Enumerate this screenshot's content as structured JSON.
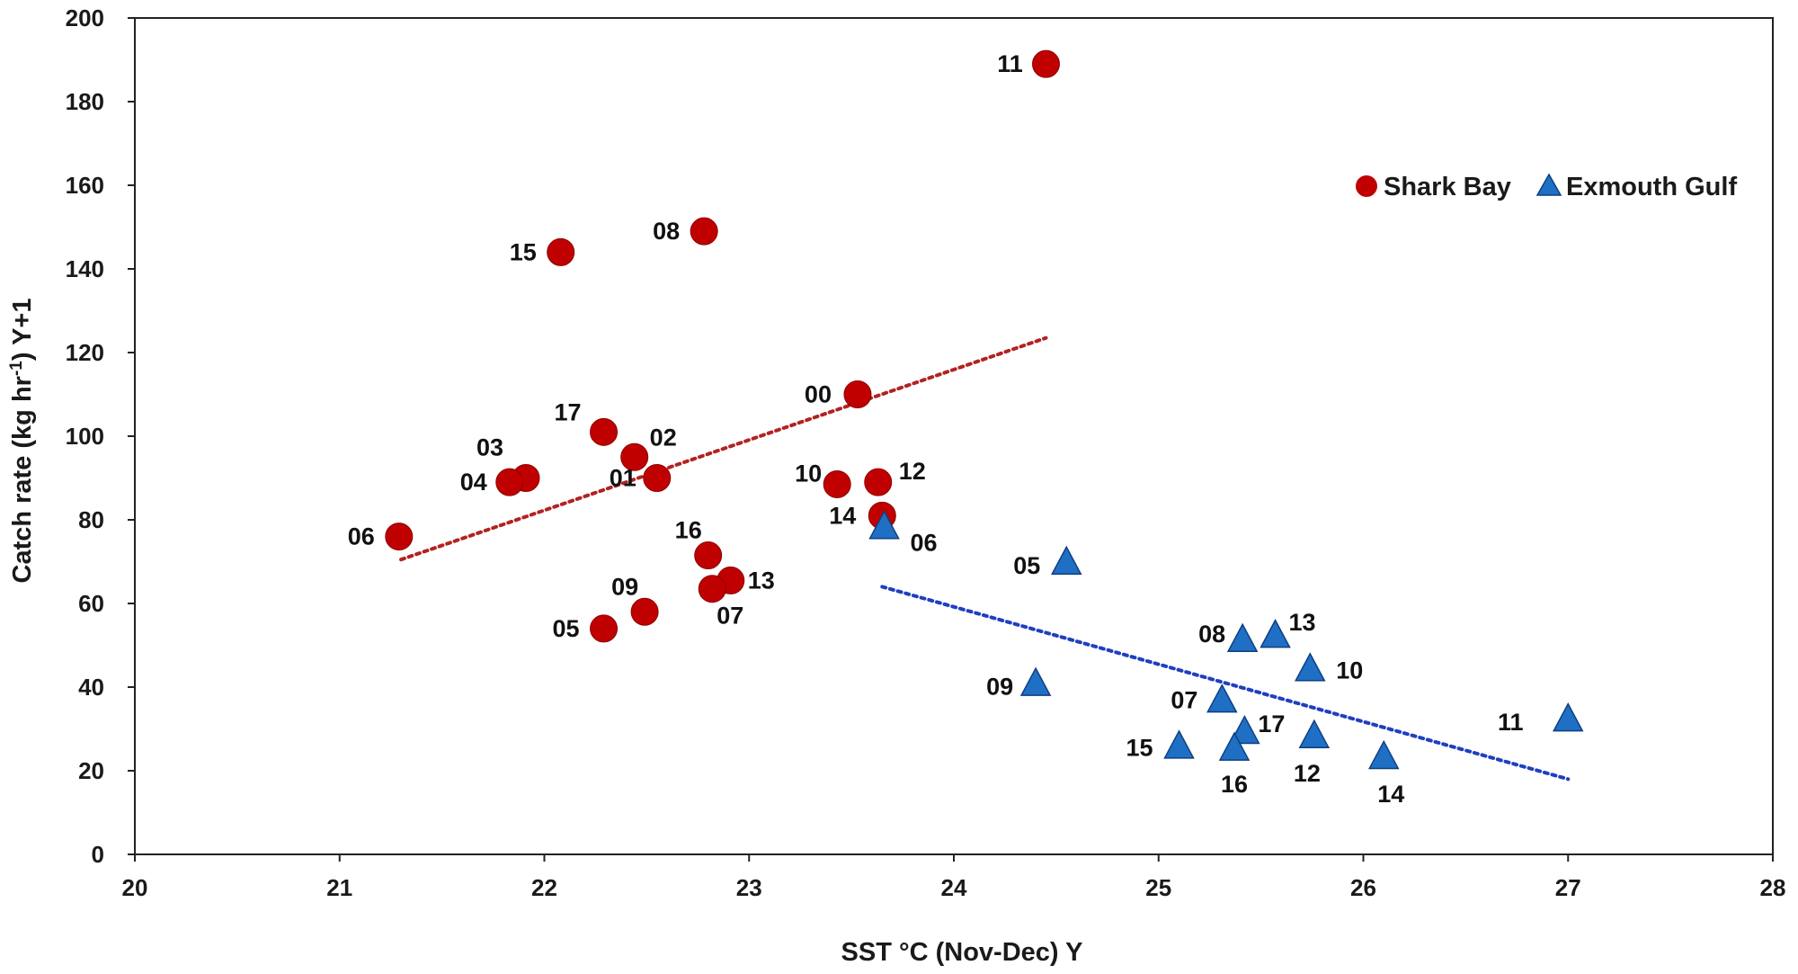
{
  "chart_data": {
    "type": "scatter",
    "xlabel": "SST °C (Nov-Dec) Y",
    "ylabel_parts": [
      "Catch rate (kg hr",
      "-1",
      ") Y+1"
    ],
    "xlim": [
      20,
      28
    ],
    "ylim": [
      0,
      200
    ],
    "x_ticks": [
      20,
      21,
      22,
      23,
      24,
      25,
      26,
      27,
      28
    ],
    "y_ticks": [
      0,
      20,
      40,
      60,
      80,
      100,
      120,
      140,
      160,
      180,
      200
    ],
    "legend_position": "top-right",
    "colors": {
      "shark_bay": "#C00000",
      "shark_bay_trend": "#B22222",
      "exmouth_gulf": "#1F6FC5",
      "exmouth_gulf_edge": "#0F3F80",
      "exmouth_gulf_trend": "#1F3FBF",
      "axis": "#222222"
    },
    "series": [
      {
        "name": "Shark Bay",
        "marker": "circle",
        "trendline": {
          "x": [
            21.3,
            24.45
          ],
          "y": [
            70.5,
            123.5
          ]
        },
        "points": [
          {
            "label": "11",
            "x": 24.45,
            "y": 189
          },
          {
            "label": "08",
            "x": 22.78,
            "y": 149
          },
          {
            "label": "15",
            "x": 22.08,
            "y": 144
          },
          {
            "label": "00",
            "x": 23.53,
            "y": 110
          },
          {
            "label": "17",
            "x": 22.29,
            "y": 101
          },
          {
            "label": "02",
            "x": 22.44,
            "y": 95
          },
          {
            "label": "03",
            "x": 21.91,
            "y": 90
          },
          {
            "label": "01",
            "x": 22.55,
            "y": 90
          },
          {
            "label": "04",
            "x": 21.83,
            "y": 89
          },
          {
            "label": "10",
            "x": 23.43,
            "y": 88.5
          },
          {
            "label": "12",
            "x": 23.63,
            "y": 89
          },
          {
            "label": "14",
            "x": 23.65,
            "y": 81
          },
          {
            "label": "06",
            "x": 21.29,
            "y": 76
          },
          {
            "label": "16",
            "x": 22.8,
            "y": 71.5
          },
          {
            "label": "13",
            "x": 22.91,
            "y": 65.5
          },
          {
            "label": "07",
            "x": 22.82,
            "y": 63.5
          },
          {
            "label": "09",
            "x": 22.49,
            "y": 58
          },
          {
            "label": "05",
            "x": 22.29,
            "y": 54
          }
        ]
      },
      {
        "name": "Exmouth Gulf",
        "marker": "triangle",
        "trendline": {
          "x": [
            23.65,
            27.0
          ],
          "y": [
            64,
            18
          ]
        },
        "points": [
          {
            "label": "06",
            "x": 23.66,
            "y": 78
          },
          {
            "label": "05",
            "x": 24.55,
            "y": 69.5
          },
          {
            "label": "13",
            "x": 25.57,
            "y": 52
          },
          {
            "label": "08",
            "x": 25.41,
            "y": 51
          },
          {
            "label": "10",
            "x": 25.74,
            "y": 44
          },
          {
            "label": "09",
            "x": 24.4,
            "y": 40.5
          },
          {
            "label": "07",
            "x": 25.31,
            "y": 36.5
          },
          {
            "label": "11",
            "x": 27.0,
            "y": 32
          },
          {
            "label": "17",
            "x": 25.42,
            "y": 29
          },
          {
            "label": "12",
            "x": 25.76,
            "y": 28
          },
          {
            "label": "15",
            "x": 25.1,
            "y": 25.5
          },
          {
            "label": "16",
            "x": 25.37,
            "y": 25
          },
          {
            "label": "14",
            "x": 26.1,
            "y": 23
          }
        ]
      }
    ]
  }
}
